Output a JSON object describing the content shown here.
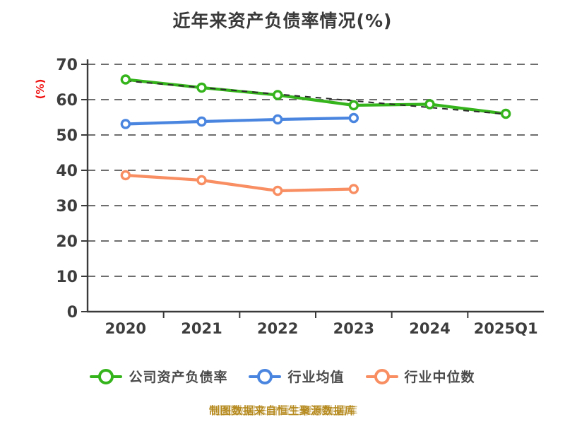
{
  "title": "近年来资产负债率情况(%)",
  "caption": "制图数据来自恒生聚源数据库",
  "chart_data": {
    "type": "line",
    "title": "近年来资产负债率情况(%)",
    "ylabel": "(%)",
    "ylabel_color": "#f01010",
    "categories": [
      "2020",
      "2021",
      "2022",
      "2023",
      "2024",
      "2025Q1"
    ],
    "series": [
      {
        "name": "公司资产负债率",
        "color": "#35b41c",
        "marker": "circle",
        "values": [
          65.7,
          63.4,
          61.3,
          58.4,
          58.7,
          56.0
        ]
      },
      {
        "name": "行业均值",
        "color": "#4a86e0",
        "marker": "circle",
        "values": [
          53.1,
          53.8,
          54.4,
          54.8,
          null,
          null
        ]
      },
      {
        "name": "行业中位数",
        "color": "#f88e62",
        "marker": "circle",
        "values": [
          38.6,
          37.2,
          34.2,
          34.7,
          null,
          null
        ]
      }
    ],
    "trendline": {
      "of_series": "公司资产负债率",
      "style": "dashed",
      "color": "#2b2b2b",
      "values": [
        65.3,
        63.4,
        61.5,
        59.6,
        57.7,
        55.9
      ]
    },
    "ylim": [
      0,
      70
    ],
    "yticks": [
      0,
      10,
      20,
      30,
      40,
      50,
      60,
      70
    ],
    "grid": "horizontal-dashed",
    "grid_color": "#6e6e6e",
    "axis_color": "#3a3a3a",
    "legend_position": "bottom"
  }
}
